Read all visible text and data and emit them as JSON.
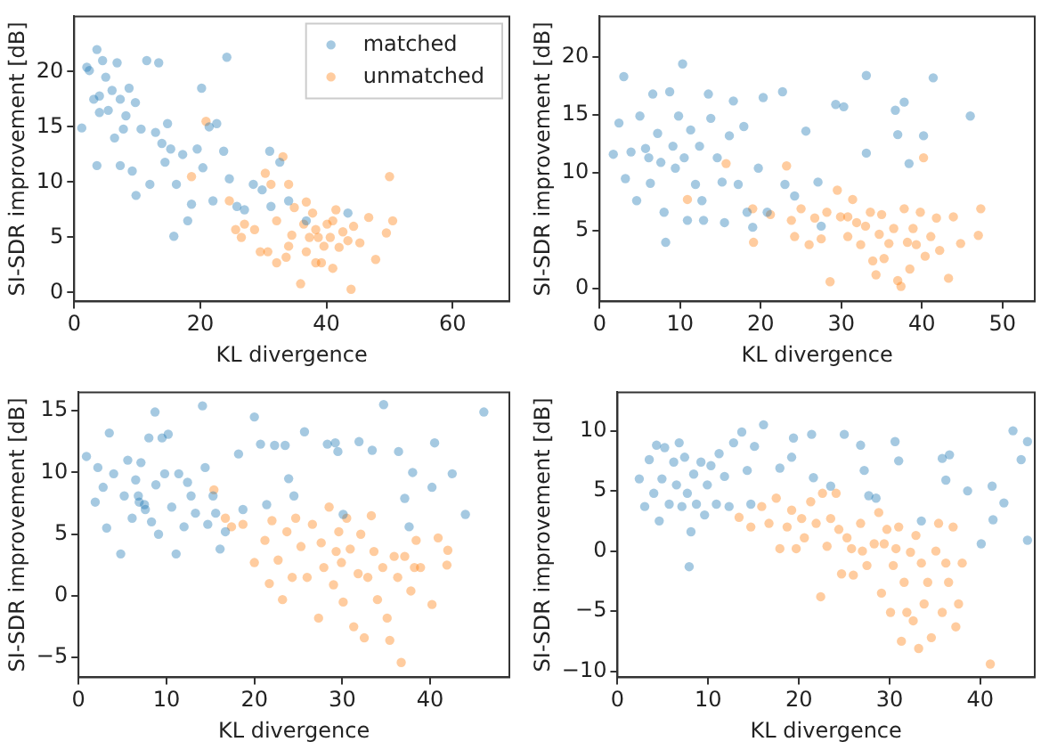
{
  "chart_data": [
    {
      "type": "scatter",
      "xlabel": "KL divergence",
      "ylabel": "SI-SDR improvement [dB]",
      "xlim": [
        0,
        69
      ],
      "ylim": [
        -0.8,
        25
      ],
      "xticks": [
        0,
        20,
        40,
        60
      ],
      "yticks": [
        0,
        5,
        10,
        15,
        20
      ],
      "legend": "top right",
      "marker": "circle",
      "series": [
        {
          "name": "matched",
          "color": "#1f77b4",
          "x": [
            1.2,
            2,
            2.4,
            3.1,
            3.6,
            3.6,
            4,
            4.5,
            5,
            5.4,
            6,
            6.4,
            6.8,
            7.3,
            7.8,
            8.2,
            8.7,
            9.7,
            9.8,
            10.6,
            11.5,
            12,
            12.9,
            13.4,
            13.9,
            14.4,
            14.8,
            15.3,
            15.8,
            16.2,
            17.2,
            18,
            18.6,
            19.5,
            20.2,
            20.4,
            21.4,
            22,
            22.6,
            23.7,
            24.2,
            24.6,
            25.8,
            27,
            28.4,
            29.8,
            31,
            31.2,
            32.6,
            34,
            36.8,
            43.4,
            4,
            7.3,
            9.2
          ],
          "values": [
            14.9,
            20.4,
            20.1,
            17.5,
            22,
            11.5,
            16.3,
            21,
            19.5,
            16.5,
            18.3,
            14,
            20.8,
            17.5,
            14.8,
            16,
            18.5,
            17.2,
            8.8,
            14.8,
            21,
            9.8,
            14.5,
            20.8,
            13.5,
            11.8,
            15.3,
            13,
            5.1,
            9.8,
            12.5,
            6.5,
            8,
            13,
            18.5,
            11.3,
            15,
            8.3,
            15.3,
            12.8,
            21.3,
            10.3,
            7.8,
            7.5,
            9.8,
            9.3,
            12.8,
            7.8,
            11.8,
            8.3,
            6.5,
            7.2,
            17.8,
            11.5,
            11
          ]
        },
        {
          "name": "unmatched",
          "color": "#ff7f0e",
          "x": [
            20.9,
            18.6,
            24.6,
            25.6,
            27,
            26.5,
            28.6,
            30.3,
            30.7,
            31.2,
            32.1,
            33.1,
            33.6,
            34,
            34.5,
            34.9,
            35.9,
            36.4,
            36.8,
            37.3,
            37.8,
            38.3,
            38.7,
            39.2,
            39.6,
            40.1,
            40.6,
            41,
            41.5,
            42,
            42.6,
            43.4,
            43.9,
            44.3,
            45.3,
            46.7,
            47.8,
            50,
            50.5,
            49.5,
            36.8,
            38.3,
            41,
            34,
            29.5,
            32.1
          ],
          "values": [
            15.5,
            10.5,
            8.3,
            5.7,
            6.2,
            5,
            5.7,
            10.8,
            3.7,
            9.8,
            6.5,
            12.3,
            3.2,
            9.8,
            5.2,
            7.7,
            0.8,
            6.2,
            3.7,
            5,
            7.2,
            5.7,
            5,
            2.7,
            4.2,
            6.2,
            5,
            2.2,
            7.5,
            4.1,
            5.5,
            4.7,
            0.3,
            6,
            4.5,
            6.8,
            3,
            10.5,
            6.5,
            5.4,
            8.2,
            2.7,
            6.5,
            4.2,
            3.7,
            2.7
          ]
        }
      ]
    },
    {
      "type": "scatter",
      "xlabel": "KL divergence",
      "ylabel": "SI-SDR improvement [dB]",
      "xlim": [
        0,
        54
      ],
      "ylim": [
        -1.1,
        23.5
      ],
      "xticks": [
        0,
        10,
        20,
        30,
        40,
        50
      ],
      "yticks": [
        0,
        5,
        10,
        15,
        20
      ],
      "marker": "circle",
      "series": [
        {
          "color": "#1f77b4",
          "x": [
            1.7,
            2.4,
            3,
            3.2,
            3.9,
            4.6,
            5,
            5.7,
            6.3,
            6.6,
            7.2,
            7.6,
            8,
            8.2,
            8.7,
            9.1,
            9.4,
            9.8,
            10.3,
            10.5,
            10.9,
            11.3,
            11.9,
            12.4,
            12.9,
            13.5,
            13.8,
            14.6,
            15.2,
            15.5,
            16.1,
            16.6,
            17.2,
            17.9,
            18.3,
            19,
            19.7,
            20.3,
            20.8,
            22.7,
            23,
            24.2,
            25.6,
            27.1,
            27.5,
            29.3,
            30.3,
            33.1,
            33.1,
            36.7,
            37,
            37.8,
            38.4,
            40.2,
            41.4,
            46,
            6.1,
            12.7
          ],
          "values": [
            11.6,
            14.3,
            18.3,
            9.5,
            11.8,
            7.6,
            14.9,
            12.1,
            9.1,
            16.8,
            13.4,
            10.9,
            6.6,
            4,
            17,
            12.3,
            10.4,
            14.9,
            19.4,
            11.3,
            5.9,
            13.7,
            9,
            12.3,
            5.9,
            16.8,
            14.7,
            11.3,
            9.2,
            5.7,
            13.2,
            16.2,
            9,
            14,
            6.6,
            5.3,
            10.4,
            16.5,
            6.6,
            17,
            9,
            8,
            13.6,
            9.2,
            5.4,
            15.9,
            15.7,
            18.4,
            11.7,
            15.4,
            13.3,
            16.1,
            10.8,
            13.2,
            18.2,
            14.9,
            11.3,
            7.6
          ]
        },
        {
          "color": "#ff7f0e",
          "x": [
            10.9,
            15.7,
            19.1,
            19,
            21.2,
            23.2,
            23.8,
            24.2,
            25,
            26,
            26.7,
            27.5,
            28.2,
            28.6,
            29.5,
            29.9,
            30.8,
            31.4,
            31.9,
            32.4,
            33,
            33.6,
            33.9,
            34.3,
            34.7,
            35,
            35.3,
            35.9,
            36.5,
            37,
            37.4,
            37.8,
            38.2,
            38.5,
            38.9,
            39.3,
            39.8,
            40.2,
            40.4,
            41.1,
            41.8,
            42.2,
            43.3,
            43.9,
            44.8,
            47,
            47.3,
            30.8
          ],
          "values": [
            7.7,
            10.8,
            4,
            6.9,
            6.4,
            10.6,
            5.9,
            4.5,
            6.9,
            3.8,
            6.1,
            4.3,
            6.6,
            0.6,
            8.5,
            6.2,
            4.5,
            7.7,
            5.7,
            3.8,
            5.4,
            6.6,
            2.4,
            1.2,
            4.7,
            6.4,
            2.6,
            3.9,
            5.2,
            0.7,
            0.2,
            6.9,
            4,
            1.7,
            5.2,
            3.8,
            6.6,
            11.3,
            2.8,
            4.5,
            6.1,
            3.3,
            0.9,
            6.2,
            3.9,
            4.6,
            6.9,
            6.2
          ]
        }
      ]
    },
    {
      "type": "scatter",
      "xlabel": "KL divergence",
      "ylabel": "SI-SDR improvement [dB]",
      "xlim": [
        0,
        49
      ],
      "ylim": [
        -6.6,
        16.5
      ],
      "xticks": [
        0,
        10,
        20,
        30,
        40
      ],
      "yticks": [
        -5,
        0,
        5,
        10,
        15
      ],
      "marker": "circle",
      "series": [
        {
          "color": "#1f77b4",
          "x": [
            0.9,
            1.9,
            2.2,
            2.8,
            3.5,
            3.2,
            4,
            4.8,
            5.2,
            5.6,
            6.1,
            6.5,
            6.9,
            7.1,
            7.5,
            8,
            8.3,
            8.7,
            8.8,
            9.1,
            9.5,
            9.8,
            10.2,
            10.6,
            11.1,
            11.4,
            12,
            12.4,
            12.8,
            13.3,
            14.1,
            14.4,
            14.7,
            15.3,
            15.6,
            16.1,
            16.7,
            18.2,
            18.7,
            20,
            20.7,
            21.4,
            22.3,
            23.5,
            23.9,
            24.5,
            25.7,
            28.3,
            29.2,
            29.5,
            30.1,
            31.9,
            33.4,
            34.7,
            36.4,
            37.1,
            37.6,
            38,
            40.2,
            40.5,
            42.5,
            44,
            46.1,
            6.8,
            7.6
          ],
          "values": [
            11.3,
            7.6,
            10.4,
            8.8,
            13.2,
            5.5,
            9.9,
            3.4,
            8.1,
            11,
            6.3,
            9.4,
            7.6,
            10.8,
            7.4,
            12.8,
            6,
            14.9,
            9,
            5,
            12.8,
            9.9,
            13.1,
            7.2,
            3.4,
            9.9,
            5.6,
            9.2,
            8.1,
            6.7,
            15.4,
            10.4,
            5.8,
            8.1,
            6.7,
            3.8,
            5.2,
            11.5,
            7,
            14.5,
            12.3,
            7.4,
            12.2,
            12.2,
            9.5,
            8.1,
            13.3,
            12.3,
            12.4,
            11.7,
            6.6,
            12.5,
            11.8,
            15.5,
            11.7,
            7.9,
            5.6,
            10,
            8.8,
            12.4,
            9.9,
            6.6,
            14.9,
            8.1,
            7
          ]
        },
        {
          "color": "#ff7f0e",
          "x": [
            15.4,
            16.7,
            17.4,
            18.7,
            20,
            21.2,
            21.7,
            22,
            22.7,
            23.2,
            23.7,
            24.3,
            24.7,
            25.3,
            26,
            26.6,
            27.3,
            27.6,
            27.9,
            28.5,
            29,
            29.3,
            29.6,
            29.9,
            30.1,
            30.5,
            30.9,
            31.3,
            31.8,
            32.1,
            32.5,
            32.9,
            33.3,
            33.6,
            34,
            34.6,
            35.1,
            35.4,
            35.9,
            36.3,
            36.7,
            37.1,
            37.8,
            38.2,
            38.4,
            38.9,
            40.2,
            40.9,
            41.9,
            42
          ],
          "values": [
            8.6,
            6.3,
            5.6,
            5.8,
            2.7,
            4.5,
            1,
            6.1,
            2.9,
            -0.3,
            5.2,
            1.5,
            6.3,
            4,
            1.5,
            5.8,
            -1.8,
            4.3,
            2.3,
            7.2,
            0.9,
            3.6,
            5.2,
            2.7,
            -0.5,
            6.3,
            3.8,
            -2.5,
            1.8,
            5,
            -3.4,
            1.5,
            6.5,
            3.6,
            -0.3,
            2.3,
            -1.8,
            -3.6,
            3.2,
            1.5,
            -5.4,
            3.2,
            0.4,
            2.3,
            4.5,
            2.3,
            -0.7,
            4.7,
            2.5,
            3.7
          ]
        }
      ]
    },
    {
      "type": "scatter",
      "xlabel": "KL divergence",
      "ylabel": "SI-SDR improvement [dB]",
      "xlim": [
        0,
        46
      ],
      "ylim": [
        -10.5,
        13.2
      ],
      "xticks": [
        0,
        10,
        20,
        30,
        40
      ],
      "yticks": [
        -10,
        -5,
        0,
        5,
        10
      ],
      "marker": "circle",
      "series": [
        {
          "color": "#1f77b4",
          "x": [
            2.4,
            3,
            3.5,
            4,
            4.3,
            4.6,
            4.9,
            5.2,
            5.7,
            6.2,
            6.5,
            6.8,
            7.1,
            7.4,
            7.7,
            8.1,
            7.9,
            8.4,
            8.7,
            9.2,
            9.6,
            9.9,
            10.3,
            10.9,
            11.2,
            11.8,
            12.3,
            12.8,
            13.7,
            14.3,
            14.7,
            15.1,
            16.1,
            17.9,
            19.2,
            19.4,
            21.4,
            21.6,
            23.5,
            25,
            26.8,
            27.2,
            27.7,
            28.5,
            30.6,
            31,
            33.5,
            35.8,
            36.2,
            36.6,
            38.6,
            41.3,
            41.4,
            40.1,
            42.6,
            43.6,
            44.5,
            45.2,
            45.2
          ],
          "values": [
            6,
            3.7,
            7.6,
            4.8,
            8.8,
            2.5,
            6,
            8.6,
            3.9,
            7.4,
            5.5,
            9,
            3.7,
            7.8,
            4.8,
            1.6,
            -1.3,
            6.4,
            3.9,
            7.4,
            3,
            5.5,
            7.1,
            3.9,
            8.1,
            6.2,
            3.7,
            9,
            9.9,
            6.7,
            3.9,
            8.7,
            10.5,
            6.9,
            7.8,
            9.4,
            9.7,
            6.1,
            5.4,
            9.7,
            8.8,
            6.7,
            4.6,
            4.4,
            9.1,
            7.5,
            2.5,
            7.7,
            5.9,
            8,
            5,
            5.4,
            2.6,
            0.6,
            4,
            10,
            7.6,
            9.1,
            0.9
          ]
        },
        {
          "color": "#ff7f0e",
          "x": [
            13.4,
            14.7,
            15.9,
            16.7,
            17.5,
            17.9,
            18.7,
            19.2,
            19.7,
            20.3,
            20.6,
            21.3,
            21.9,
            22.4,
            22.6,
            23.1,
            23.5,
            24.1,
            24.4,
            24.7,
            25.3,
            25.8,
            26,
            26.8,
            27,
            27.5,
            28.3,
            28.8,
            29.1,
            29.4,
            29.7,
            30.1,
            30.4,
            30.7,
            31,
            31.3,
            31.6,
            31.9,
            32.3,
            32.6,
            32.9,
            33.2,
            33.5,
            33.8,
            34.2,
            34.6,
            35.1,
            35.4,
            35.8,
            36.2,
            36.5,
            37,
            37.3,
            37.6,
            38,
            41.1
          ],
          "values": [
            2.8,
            2,
            3.7,
            2.3,
            4.4,
            0.2,
            2,
            3.4,
            0.2,
            2.7,
            1.1,
            4.1,
            2.3,
            -3.8,
            4.8,
            0.4,
            2.7,
            4.8,
            1.8,
            -1.9,
            1.1,
            0.2,
            -2,
            2.3,
            0,
            -1.2,
            0.6,
            3.2,
            -3.5,
            0.6,
            1.8,
            -5.1,
            -1.2,
            0.2,
            2,
            -7.5,
            -2.6,
            -5.1,
            -0.1,
            -5.8,
            1.3,
            -8.1,
            -1,
            -4.4,
            -2.6,
            -7.2,
            0,
            2.3,
            -5.1,
            -1,
            -2.6,
            2,
            -6.3,
            -4.4,
            -1,
            -9.4
          ]
        }
      ]
    }
  ]
}
